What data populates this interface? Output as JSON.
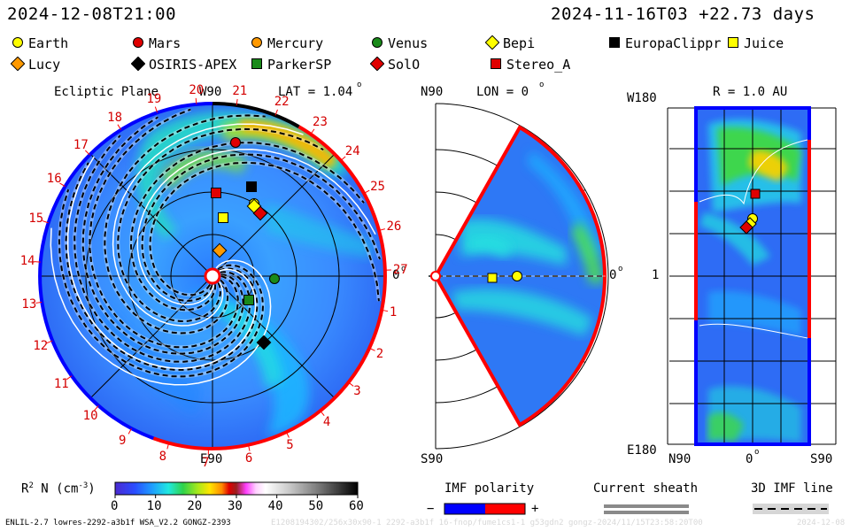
{
  "header": {
    "datetime_left": "2024-12-08T21:00",
    "datetime_right": "2024-11-16T03 +22.73 days"
  },
  "legend": [
    {
      "name": "Earth",
      "shape": "circle",
      "color": "#ffff00"
    },
    {
      "name": "Mars",
      "shape": "circle",
      "color": "#e00000"
    },
    {
      "name": "Mercury",
      "shape": "circle",
      "color": "#ff9900"
    },
    {
      "name": "Venus",
      "shape": "circle",
      "color": "#1a8a1a"
    },
    {
      "name": "Bepi",
      "shape": "diamond",
      "color": "#ffff00"
    },
    {
      "name": "EuropaClippr",
      "shape": "square",
      "color": "#000000"
    },
    {
      "name": "Juice",
      "shape": "square",
      "color": "#ffff00"
    },
    {
      "name": "Lucy",
      "shape": "diamond",
      "color": "#ff9900"
    },
    {
      "name": "OSIRIS-APEX",
      "shape": "diamond",
      "color": "#000000"
    },
    {
      "name": "ParkerSP",
      "shape": "square",
      "color": "#1a8a1a"
    },
    {
      "name": "SolO",
      "shape": "diamond",
      "color": "#e00000"
    },
    {
      "name": "Stereo_A",
      "shape": "square",
      "color": "#e00000"
    }
  ],
  "panel_ecliptic": {
    "title": "Ecliptic Plane",
    "top_label": "W90",
    "lat_label": "LAT = 1.04",
    "lat_degree": "o",
    "right_label": "0",
    "right_degree": "o",
    "bottom_label": "E90",
    "day_ticks": [
      "1",
      "2",
      "3",
      "4",
      "5",
      "6",
      "7",
      "8",
      "9",
      "10",
      "11",
      "12",
      "13",
      "14",
      "15",
      "16",
      "17",
      "18",
      "19",
      "20",
      "21",
      "22",
      "23",
      "24",
      "25",
      "26",
      "27"
    ]
  },
  "panel_meridional": {
    "title": "LON = 0",
    "title_degree": "o",
    "top_label": "N90",
    "bottom_label": "S90",
    "right_label": "0",
    "right_degree": "o"
  },
  "panel_r": {
    "title": "R = 1.0 AU",
    "top_label": "W180",
    "bottom_label": "E180",
    "mid_label": "1",
    "x_left": "N90",
    "x_mid": "0",
    "x_mid_degree": "o",
    "x_right": "S90"
  },
  "colorbar": {
    "label": "R",
    "label_sup": "2",
    "label_rest": " N (cm",
    "label_exp": "-3",
    "label_end": ")",
    "min": 0,
    "max": 60,
    "ticks": [
      "0",
      "10",
      "20",
      "30",
      "40",
      "50",
      "60"
    ]
  },
  "imf_polarity": {
    "title": "IMF polarity",
    "minus": "−",
    "plus": "+",
    "neg_color": "#0000ff",
    "pos_color": "#ff0000"
  },
  "current_sheath": {
    "title": "Current sheath"
  },
  "imf_line": {
    "title": "3D IMF line"
  },
  "footer": {
    "left": "ENLIL-2.7 lowres-2292-a3b1f WSA_V2.2 GONGZ-2393",
    "ghost": "E1208194302/256x30x90-1 2292-a3b1f 16-fnop/fume1cs1-1 g53gdn2 gongz-2024/11/15T23:58:20T00",
    "right_ghost": "2024-12-08"
  }
}
